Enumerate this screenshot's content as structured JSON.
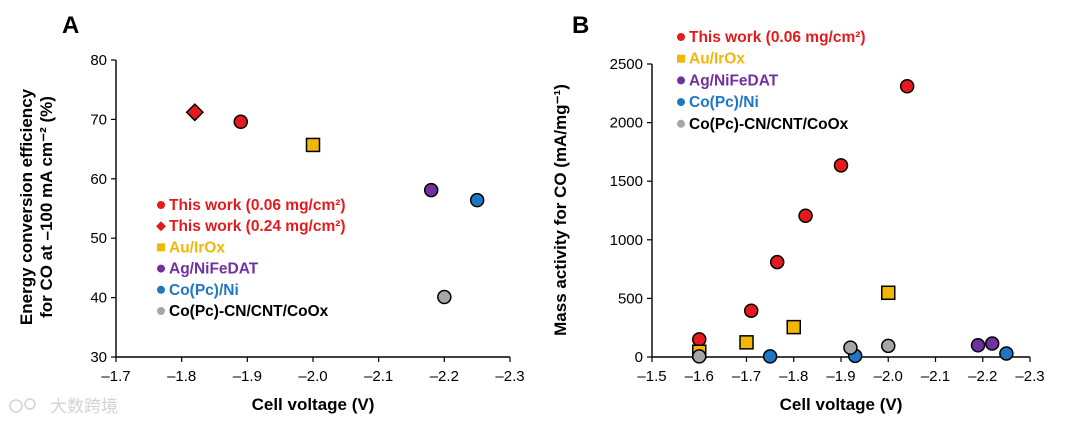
{
  "watermark": {
    "text": "大数跨境"
  },
  "chart_data": [
    {
      "type": "scatter",
      "panel": "A",
      "xlabel": "Cell voltage (V)",
      "ylabel_line1": "Energy conversion efficiency",
      "ylabel_line2": "for CO at –100 mA cm⁻² (%)",
      "xlim": [
        -1.7,
        -2.3
      ],
      "ylim": [
        30,
        80
      ],
      "xticks": [
        -1.7,
        -1.8,
        -1.9,
        -2.0,
        -2.1,
        -2.2,
        -2.3
      ],
      "xtick_labels": [
        "–1.7",
        "–1.8",
        "–1.9",
        "–2.0",
        "–2.1",
        "–2.2",
        "–2.3"
      ],
      "yticks": [
        30,
        40,
        50,
        60,
        70,
        80
      ],
      "ytick_labels": [
        "30",
        "40",
        "50",
        "60",
        "70",
        "80"
      ],
      "legend_position": "lower-left",
      "series": [
        {
          "name": "This work (0.06 mg/cm²)",
          "color": "#e41a1c",
          "marker": "circle",
          "points": [
            [
              -1.89,
              69.6
            ]
          ]
        },
        {
          "name": "This work (0.24 mg/cm²)",
          "color": "#e41a1c",
          "marker": "diamond",
          "points": [
            [
              -1.82,
              71.2
            ]
          ]
        },
        {
          "name": "Au/IrOx",
          "color": "#f2b705",
          "marker": "square",
          "points": [
            [
              -2.0,
              65.7
            ]
          ]
        },
        {
          "name": "Ag/NiFeDAT",
          "color": "#7030a0",
          "marker": "circle",
          "points": [
            [
              -2.18,
              58.1
            ]
          ]
        },
        {
          "name": "Co(Pc)/Ni",
          "color": "#1f77c4",
          "marker": "circle",
          "points": [
            [
              -2.25,
              56.4
            ]
          ]
        },
        {
          "name": "Co(Pc)-CN/CNT/CoOx",
          "color": "#a6a6a6",
          "marker": "circle",
          "points": [
            [
              -2.2,
              40.1
            ]
          ]
        }
      ]
    },
    {
      "type": "scatter",
      "panel": "B",
      "xlabel": "Cell voltage (V)",
      "ylabel": "Mass activity for CO (mA/mg⁻¹)",
      "xlim": [
        -1.5,
        -2.3
      ],
      "ylim": [
        0,
        2500
      ],
      "xticks": [
        -1.5,
        -1.6,
        -1.7,
        -1.8,
        -1.9,
        -2.0,
        -2.1,
        -2.2,
        -2.3
      ],
      "xtick_labels": [
        "–1.5",
        "–1.6",
        "–1.7",
        "–1.8",
        "–1.9",
        "–2.0",
        "–2.1",
        "–2.2",
        "–2.3"
      ],
      "yticks": [
        0,
        500,
        1000,
        1500,
        2000,
        2500
      ],
      "ytick_labels": [
        "0",
        "500",
        "1000",
        "1500",
        "2000",
        "2500"
      ],
      "legend_position": "top-left",
      "series": [
        {
          "name": "This work (0.06 mg/cm²)",
          "color": "#e41a1c",
          "marker": "circle",
          "points": [
            [
              -1.6,
              150
            ],
            [
              -1.71,
              395
            ],
            [
              -1.765,
              810
            ],
            [
              -1.825,
              1205
            ],
            [
              -1.9,
              1635
            ],
            [
              -2.04,
              2310
            ]
          ]
        },
        {
          "name": "Au/IrOx",
          "color": "#f2b705",
          "marker": "square",
          "points": [
            [
              -1.6,
              45
            ],
            [
              -1.7,
              125
            ],
            [
              -1.8,
              255
            ],
            [
              -2.0,
              548
            ]
          ]
        },
        {
          "name": "Ag/NiFeDAT",
          "color": "#7030a0",
          "marker": "circle",
          "points": [
            [
              -2.19,
              100
            ],
            [
              -2.22,
              115
            ]
          ]
        },
        {
          "name": "Co(Pc)/Ni",
          "color": "#1f77c4",
          "marker": "circle",
          "points": [
            [
              -1.75,
              5
            ],
            [
              -1.93,
              10
            ],
            [
              -2.25,
              30
            ]
          ]
        },
        {
          "name": "Co(Pc)-CN/CNT/CoOx",
          "color": "#a6a6a6",
          "marker": "circle",
          "points": [
            [
              -1.6,
              5
            ],
            [
              -1.92,
              80
            ],
            [
              -2.0,
              95
            ]
          ]
        }
      ]
    }
  ]
}
